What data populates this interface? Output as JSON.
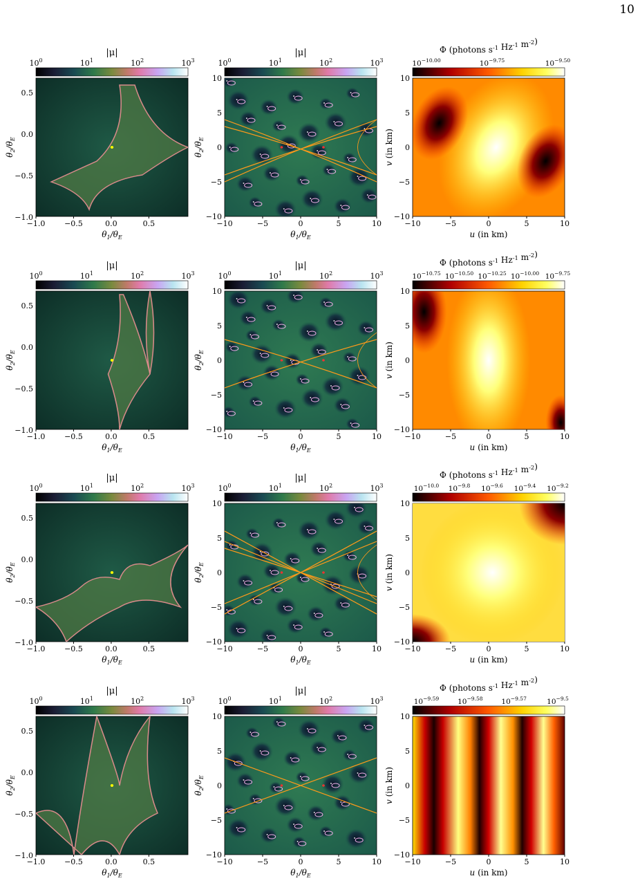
{
  "page_number": "10",
  "colors": {
    "caustic": "#d98a8a",
    "critical_curve": "#ff9a1a",
    "source": "#ffff00"
  },
  "colorbars": {
    "magnification": {
      "label": "|μ|",
      "ticks": [
        "10^0",
        "10^1",
        "10^2",
        "10^3"
      ],
      "colormap": "cubehelix-like dark→teal→green→pink→lavender→white"
    },
    "flux_label": "Φ (photons s^-1 Hz^-1 m^-2)",
    "flux_colormap": "hot: black→red→orange→yellow→white"
  },
  "axes": {
    "caustic_x": "θ1/θE",
    "caustic_y": "θ2/θE",
    "image_x": "θ1/θE",
    "image_y": "θ2/θE",
    "flux_x": "u (in km)",
    "flux_y": "v (in km)",
    "caustic_xticks": [
      "−1.0",
      "−0.5",
      "0.0",
      "0.5"
    ],
    "caustic_yticks": [
      "0.5",
      "0.0",
      "−0.5",
      "−1.0"
    ],
    "image_xticks": [
      "−10",
      "−5",
      "0",
      "5",
      "10"
    ],
    "image_yticks": [
      "10",
      "5",
      "0",
      "−5",
      "−10"
    ],
    "flux_xticks": [
      "−10",
      "−5",
      "0",
      "5",
      "10"
    ],
    "flux_yticks": [
      "10",
      "5",
      "0",
      "−5",
      "−10"
    ]
  },
  "rows": [
    {
      "flux_ticks": [
        "10^-10.00",
        "10^-9.75",
        "10^-9.50"
      ]
    },
    {
      "flux_ticks": [
        "10^-10.75",
        "10^-10.50",
        "10^-10.25",
        "10^-10.00",
        "10^-9.75"
      ]
    },
    {
      "flux_ticks": [
        "10^-10.0",
        "10^-9.8",
        "10^-9.6",
        "10^-9.4",
        "10^-9.2"
      ]
    },
    {
      "flux_ticks": [
        "10^-9.59",
        "10^-9.58",
        "10^-9.57",
        "10^-9.5"
      ]
    }
  ]
}
